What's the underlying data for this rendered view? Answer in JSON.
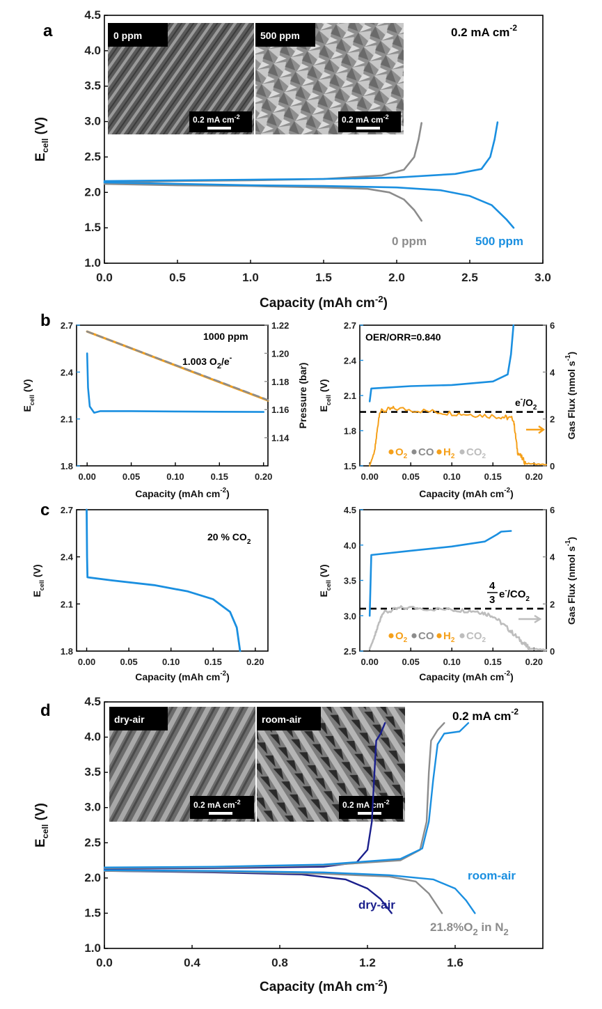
{
  "colors": {
    "blue": "#1a8fe0",
    "grey": "#8c8c8c",
    "orange": "#f5a01a",
    "navy": "#1a1f8c",
    "light_grey": "#bdbdbd",
    "black": "#000000"
  },
  "chart_data": [
    {
      "id": "a",
      "type": "line",
      "panel_label": "a",
      "xlabel": "Capacity (mAh cm",
      "xlabel_sup": "-2",
      "xlabel_end": ")",
      "ylabel": "E",
      "ylabel_sub": "cell",
      "ylabel_end": " (V)",
      "xlim": [
        0,
        3.0
      ],
      "ylim": [
        1.0,
        4.5
      ],
      "xticks": [
        "0.0",
        "0.5",
        "1.0",
        "1.5",
        "2.0",
        "2.5",
        "3.0"
      ],
      "yticks": [
        "1.0",
        "1.5",
        "2.0",
        "2.5",
        "3.0",
        "3.5",
        "4.0",
        "4.5"
      ],
      "current_label": "0.2 mA cm",
      "current_label_sup": "-2",
      "inset_labels": [
        "0 ppm",
        "500 ppm"
      ],
      "scale_bar_label": "0.2 mA cm",
      "scale_bar_sup": "-2",
      "series": [
        {
          "name": "0 ppm",
          "color": "grey",
          "charge": [
            [
              0,
              2.14
            ],
            [
              0.5,
              2.16
            ],
            [
              1.0,
              2.17
            ],
            [
              1.5,
              2.19
            ],
            [
              1.9,
              2.24
            ],
            [
              2.05,
              2.32
            ],
            [
              2.12,
              2.5
            ],
            [
              2.15,
              2.75
            ],
            [
              2.17,
              2.98
            ]
          ],
          "discharge": [
            [
              0,
              2.12
            ],
            [
              0.5,
              2.1
            ],
            [
              1.0,
              2.09
            ],
            [
              1.5,
              2.07
            ],
            [
              1.8,
              2.05
            ],
            [
              1.95,
              2.0
            ],
            [
              2.05,
              1.9
            ],
            [
              2.12,
              1.75
            ],
            [
              2.17,
              1.6
            ]
          ]
        },
        {
          "name": "500 ppm",
          "color": "blue",
          "charge": [
            [
              0,
              2.16
            ],
            [
              0.5,
              2.17
            ],
            [
              1.0,
              2.18
            ],
            [
              1.5,
              2.19
            ],
            [
              2.0,
              2.21
            ],
            [
              2.4,
              2.26
            ],
            [
              2.58,
              2.33
            ],
            [
              2.64,
              2.5
            ],
            [
              2.67,
              2.75
            ],
            [
              2.69,
              2.99
            ]
          ],
          "discharge": [
            [
              0,
              2.14
            ],
            [
              0.5,
              2.12
            ],
            [
              1.0,
              2.1
            ],
            [
              1.5,
              2.09
            ],
            [
              2.0,
              2.07
            ],
            [
              2.3,
              2.03
            ],
            [
              2.5,
              1.95
            ],
            [
              2.65,
              1.82
            ],
            [
              2.75,
              1.62
            ],
            [
              2.8,
              1.5
            ]
          ]
        }
      ]
    },
    {
      "id": "b-left",
      "type": "line",
      "panel_label": "b",
      "xlabel": "Capacity (mAh cm",
      "xlabel_sup": "-2",
      "xlabel_end": ")",
      "ylabel": "E",
      "ylabel_sub": "cell",
      "ylabel_end": " (V)",
      "ylabel2": "Pressure (bar)",
      "xlim": [
        -0.012,
        0.205
      ],
      "ylim": [
        1.8,
        2.7
      ],
      "y2lim": [
        1.12,
        1.22
      ],
      "xticks": [
        "0.00",
        "0.05",
        "0.10",
        "0.15",
        "0.20"
      ],
      "yticks": [
        "1.8",
        "2.1",
        "2.4",
        "2.7"
      ],
      "y2ticks": [
        "1.14",
        "1.16",
        "1.18",
        "1.20",
        "1.22"
      ],
      "annotation_1": "1000 ppm",
      "annotation_2": "1.003 O",
      "annotation_2_sub": "2",
      "annotation_2_end": "/e",
      "annotation_2_sup": "-",
      "series": [
        {
          "name": "E_cell",
          "color": "blue",
          "points": [
            [
              0,
              2.52
            ],
            [
              0.001,
              2.3
            ],
            [
              0.003,
              2.18
            ],
            [
              0.008,
              2.14
            ],
            [
              0.015,
              2.15
            ],
            [
              0.05,
              2.15
            ],
            [
              0.1,
              2.148
            ],
            [
              0.15,
              2.146
            ],
            [
              0.2,
              2.145
            ]
          ]
        },
        {
          "name": "Pressure",
          "color": "orange",
          "axis": "y2",
          "points": [
            [
              0,
              1.2155
            ],
            [
              0.05,
              1.2035
            ],
            [
              0.1,
              1.1915
            ],
            [
              0.15,
              1.1795
            ],
            [
              0.205,
              1.1665
            ]
          ]
        },
        {
          "name": "Theoretical",
          "color": "grey",
          "axis": "y2",
          "dashed": true,
          "points": [
            [
              0,
              1.2155
            ],
            [
              0.205,
              1.1668
            ]
          ]
        }
      ]
    },
    {
      "id": "b-right",
      "type": "line",
      "xlabel": "Capacity (mAh cm",
      "xlabel_sup": "-2",
      "xlabel_end": ")",
      "ylabel": "E",
      "ylabel_sub": "cell",
      "ylabel_end": " (V)",
      "ylabel2": "Gas Flux (nmol s",
      "ylabel2_sup": "-1",
      "ylabel2_end": ")",
      "xlim": [
        -0.012,
        0.215
      ],
      "ylim": [
        1.5,
        2.7
      ],
      "y2lim": [
        0,
        6
      ],
      "xticks": [
        "0.00",
        "0.05",
        "0.10",
        "0.15",
        "0.20"
      ],
      "yticks": [
        "1.5",
        "1.8",
        "2.1",
        "2.4",
        "2.7"
      ],
      "y2ticks": [
        "0",
        "2",
        "4",
        "6"
      ],
      "annotation_1": "OER/ORR=0.840",
      "ref_label": "e",
      "ref_label_sup": "-",
      "ref_label_end": "/O",
      "ref_label_sub": "2",
      "reference_line": 2.3,
      "legend": [
        {
          "label": "O",
          "sub": "2",
          "color": "orange"
        },
        {
          "label": "CO",
          "sub": "",
          "color": "grey"
        },
        {
          "label": "H",
          "sub": "2",
          "color": "orange"
        },
        {
          "label": "CO",
          "sub": "2",
          "color": "light_grey"
        }
      ],
      "series": [
        {
          "name": "E_cell",
          "color": "blue",
          "points": [
            [
              0,
              2.05
            ],
            [
              0.002,
              2.16
            ],
            [
              0.05,
              2.18
            ],
            [
              0.1,
              2.19
            ],
            [
              0.15,
              2.22
            ],
            [
              0.168,
              2.28
            ],
            [
              0.172,
              2.45
            ],
            [
              0.175,
              2.7
            ]
          ]
        },
        {
          "name": "O2 flux",
          "color": "orange",
          "axis": "y2",
          "points": [
            [
              0,
              0.02
            ],
            [
              0.006,
              0.6
            ],
            [
              0.012,
              2.3
            ],
            [
              0.03,
              2.45
            ],
            [
              0.08,
              2.3
            ],
            [
              0.12,
              2.2
            ],
            [
              0.16,
              2.1
            ],
            [
              0.175,
              2.0
            ],
            [
              0.18,
              0.6
            ],
            [
              0.19,
              0.1
            ],
            [
              0.215,
              0.05
            ]
          ]
        }
      ]
    },
    {
      "id": "c-left",
      "type": "line",
      "panel_label": "c",
      "xlabel": "Capacity (mAh cm",
      "xlabel_sup": "-2",
      "xlabel_end": ")",
      "ylabel": "E",
      "ylabel_sub": "cell",
      "ylabel_end": " (V)",
      "xlim": [
        -0.012,
        0.215
      ],
      "ylim": [
        1.8,
        2.7
      ],
      "xticks": [
        "0.00",
        "0.05",
        "0.10",
        "0.15",
        "0.20"
      ],
      "yticks": [
        "1.8",
        "2.1",
        "2.4",
        "2.7"
      ],
      "annotation_1": "20 % CO",
      "annotation_1_sub": "2",
      "series": [
        {
          "name": "E_cell",
          "color": "blue",
          "points": [
            [
              0,
              2.7
            ],
            [
              0.0005,
              2.4
            ],
            [
              0.001,
              2.27
            ],
            [
              0.03,
              2.25
            ],
            [
              0.08,
              2.22
            ],
            [
              0.12,
              2.18
            ],
            [
              0.15,
              2.13
            ],
            [
              0.17,
              2.05
            ],
            [
              0.178,
              1.95
            ],
            [
              0.182,
              1.8
            ]
          ]
        }
      ]
    },
    {
      "id": "c-right",
      "type": "line",
      "xlabel": "Capacity (mAh cm",
      "xlabel_sup": "-2",
      "xlabel_end": ")",
      "ylabel": "E",
      "ylabel_sub": "cell",
      "ylabel_end": " (V)",
      "ylabel2": "Gas Flux (nmol s",
      "ylabel2_sup": "-1",
      "ylabel2_end": ")",
      "xlim": [
        -0.012,
        0.215
      ],
      "ylim": [
        2.5,
        4.5
      ],
      "y2lim": [
        0,
        6
      ],
      "xticks": [
        "0.00",
        "0.05",
        "0.10",
        "0.15",
        "0.20"
      ],
      "yticks": [
        "2.5",
        "3.0",
        "3.5",
        "4.0",
        "4.5"
      ],
      "y2ticks": [
        "0",
        "2",
        "4",
        "6"
      ],
      "ref_num": "4",
      "ref_den": "3",
      "ref_label": "e",
      "ref_label_sup": "-",
      "ref_label_end": "/CO",
      "ref_label_sub": "2",
      "reference_line": 1.8,
      "legend": [
        {
          "label": "O",
          "sub": "2",
          "color": "orange"
        },
        {
          "label": "CO",
          "sub": "",
          "color": "grey"
        },
        {
          "label": "H",
          "sub": "2",
          "color": "orange"
        },
        {
          "label": "CO",
          "sub": "2",
          "color": "light_grey"
        }
      ],
      "series": [
        {
          "name": "E_cell",
          "color": "blue",
          "points": [
            [
              0,
              3.0
            ],
            [
              0.002,
              3.86
            ],
            [
              0.05,
              3.92
            ],
            [
              0.1,
              3.98
            ],
            [
              0.14,
              4.05
            ],
            [
              0.155,
              4.15
            ],
            [
              0.16,
              4.19
            ],
            [
              0.172,
              4.2
            ]
          ]
        },
        {
          "name": "CO2 flux",
          "color": "light_grey",
          "axis": "y2",
          "points": [
            [
              0,
              0.1
            ],
            [
              0.006,
              0.6
            ],
            [
              0.015,
              1.6
            ],
            [
              0.04,
              1.85
            ],
            [
              0.1,
              1.75
            ],
            [
              0.13,
              1.7
            ],
            [
              0.15,
              1.5
            ],
            [
              0.17,
              0.9
            ],
            [
              0.185,
              0.4
            ],
            [
              0.195,
              0.1
            ],
            [
              0.215,
              0.05
            ]
          ]
        }
      ]
    },
    {
      "id": "d",
      "type": "line",
      "panel_label": "d",
      "xlabel": "Capacity (mAh cm",
      "xlabel_sup": "-2",
      "xlabel_end": ")",
      "ylabel": "E",
      "ylabel_sub": "cell",
      "ylabel_end": " (V)",
      "xlim": [
        0,
        2.0
      ],
      "ylim": [
        1.0,
        4.5
      ],
      "xticks": [
        "0.0",
        "0.4",
        "0.8",
        "1.2",
        "1.6"
      ],
      "xtick_values": [
        0,
        0.4,
        0.8,
        1.2,
        1.6
      ],
      "yticks": [
        "1.0",
        "1.5",
        "2.0",
        "2.5",
        "3.0",
        "3.5",
        "4.0",
        "4.5"
      ],
      "current_label": "0.2 mA cm",
      "current_label_sup": "-2",
      "inset_labels": [
        "dry-air",
        "room-air"
      ],
      "scale_bar_label": "0.2 mA cm",
      "scale_bar_sup": "-2",
      "label_room_air": "room-air",
      "label_dry_air": "dry-air",
      "label_n2": "21.8%O",
      "label_n2_sub": "2",
      "label_n2_end": " in N",
      "label_n2_sub2": "2",
      "series": [
        {
          "name": "dry-air",
          "color": "navy",
          "charge": [
            [
              0,
              2.13
            ],
            [
              0.5,
              2.14
            ],
            [
              1.0,
              2.16
            ],
            [
              1.15,
              2.22
            ],
            [
              1.2,
              2.4
            ],
            [
              1.22,
              2.8
            ],
            [
              1.23,
              3.4
            ],
            [
              1.24,
              3.95
            ],
            [
              1.26,
              4.05
            ],
            [
              1.28,
              4.2
            ]
          ],
          "discharge": [
            [
              0,
              2.1
            ],
            [
              0.5,
              2.08
            ],
            [
              0.9,
              2.05
            ],
            [
              1.1,
              1.98
            ],
            [
              1.2,
              1.85
            ],
            [
              1.26,
              1.7
            ],
            [
              1.31,
              1.5
            ]
          ]
        },
        {
          "name": "21.8%O2 in N2",
          "color": "grey",
          "charge": [
            [
              0,
              2.14
            ],
            [
              0.5,
              2.15
            ],
            [
              1.0,
              2.18
            ],
            [
              1.35,
              2.25
            ],
            [
              1.44,
              2.4
            ],
            [
              1.47,
              2.8
            ],
            [
              1.48,
              3.5
            ],
            [
              1.49,
              3.95
            ],
            [
              1.52,
              4.1
            ],
            [
              1.55,
              4.2
            ]
          ],
          "discharge": [
            [
              0,
              2.1
            ],
            [
              0.5,
              2.09
            ],
            [
              1.0,
              2.06
            ],
            [
              1.3,
              2.02
            ],
            [
              1.42,
              1.95
            ],
            [
              1.48,
              1.78
            ],
            [
              1.54,
              1.5
            ]
          ]
        },
        {
          "name": "room-air",
          "color": "blue",
          "charge": [
            [
              0,
              2.15
            ],
            [
              0.5,
              2.16
            ],
            [
              1.0,
              2.19
            ],
            [
              1.35,
              2.27
            ],
            [
              1.45,
              2.42
            ],
            [
              1.48,
              2.8
            ],
            [
              1.5,
              3.4
            ],
            [
              1.52,
              3.9
            ],
            [
              1.55,
              4.05
            ],
            [
              1.62,
              4.08
            ],
            [
              1.66,
              4.2
            ]
          ],
          "discharge": [
            [
              0,
              2.11
            ],
            [
              0.5,
              2.1
            ],
            [
              1.0,
              2.08
            ],
            [
              1.3,
              2.04
            ],
            [
              1.5,
              1.98
            ],
            [
              1.6,
              1.85
            ],
            [
              1.65,
              1.68
            ],
            [
              1.69,
              1.5
            ]
          ]
        }
      ]
    }
  ]
}
